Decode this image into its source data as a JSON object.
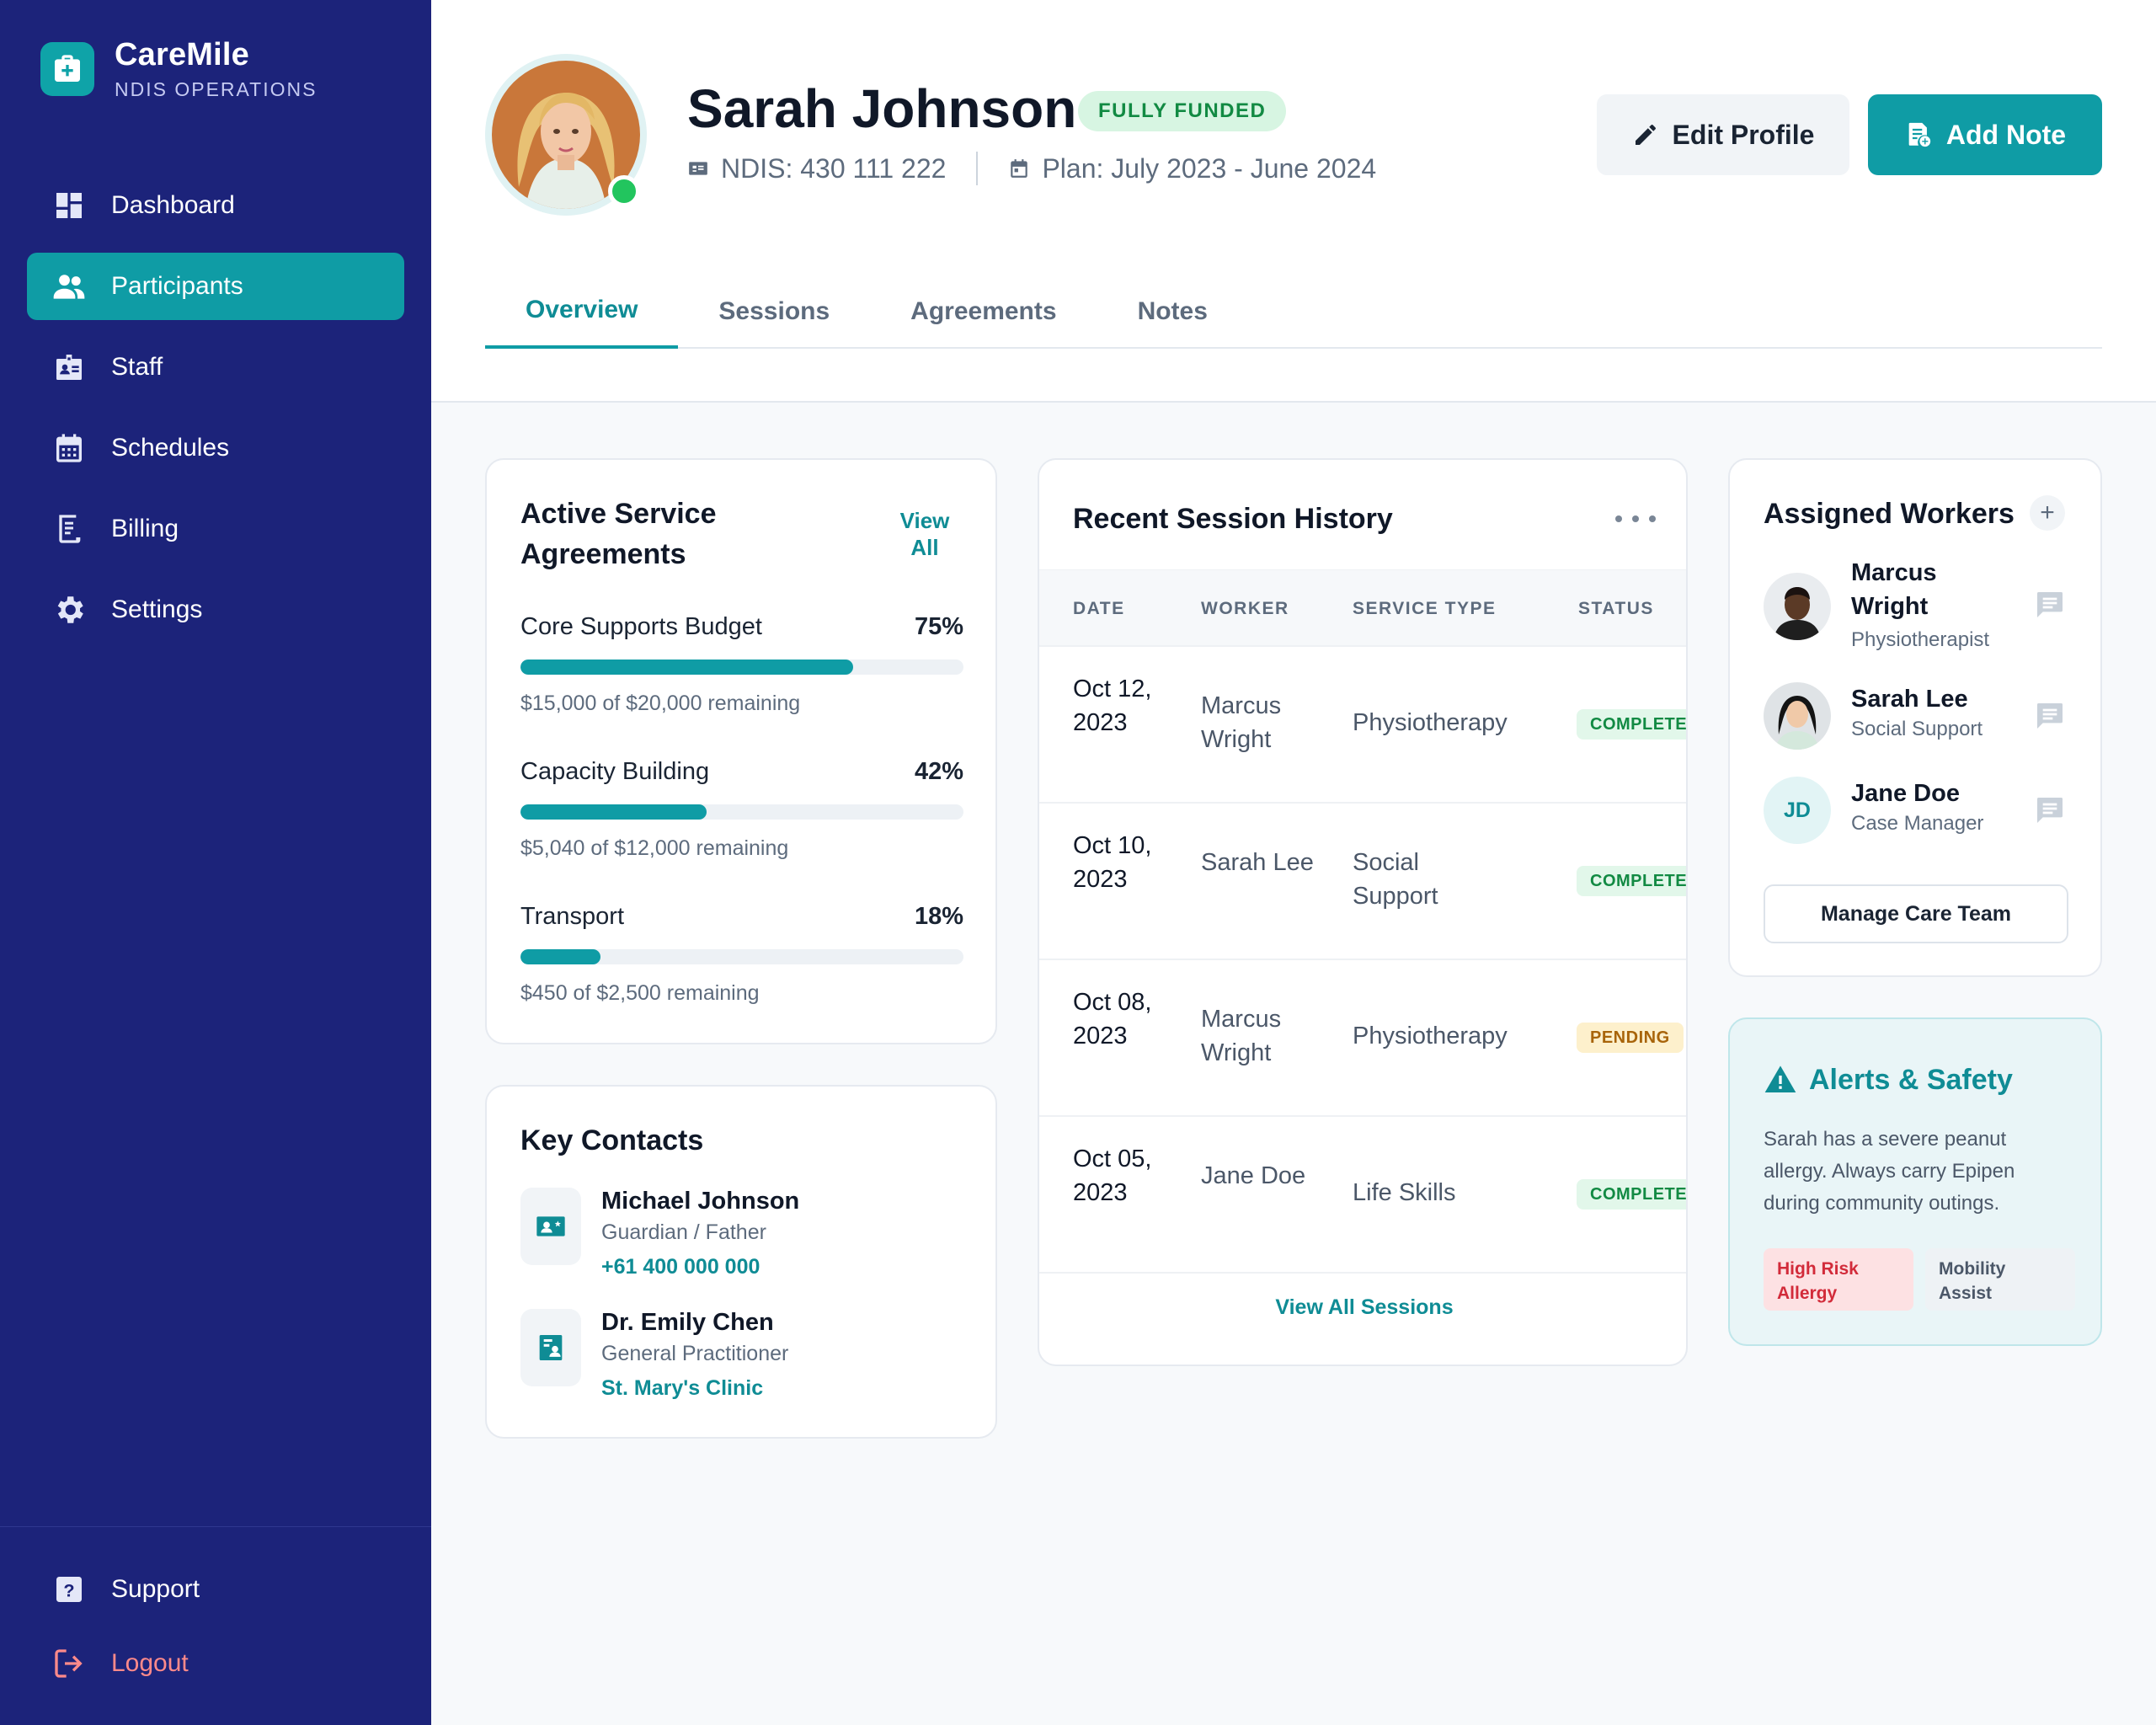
{
  "brand": {
    "name": "CareMile",
    "subtitle": "NDIS OPERATIONS"
  },
  "nav": [
    {
      "label": "Dashboard",
      "icon": "dashboard-icon"
    },
    {
      "label": "Participants",
      "icon": "people-icon",
      "active": true
    },
    {
      "label": "Staff",
      "icon": "id-badge-icon"
    },
    {
      "label": "Schedules",
      "icon": "calendar-icon"
    },
    {
      "label": "Billing",
      "icon": "receipt-icon"
    },
    {
      "label": "Settings",
      "icon": "gear-icon"
    }
  ],
  "sidebar_bottom": {
    "support": "Support",
    "logout": "Logout"
  },
  "profile": {
    "name": "Sarah Johnson",
    "badge": "FULLY FUNDED",
    "ndis": "NDIS: 430 111 222",
    "plan": "Plan: July 2023 - June 2024",
    "online": true
  },
  "actions": {
    "edit": "Edit Profile",
    "add_note": "Add Note"
  },
  "tabs": [
    "Overview",
    "Sessions",
    "Agreements",
    "Notes"
  ],
  "agreements": {
    "title": "Active Service Agreements",
    "view_all": "View All",
    "items": [
      {
        "label": "Core Supports Budget",
        "percent": "75%",
        "fill": 0.75,
        "remaining": "$15,000 of $20,000 remaining"
      },
      {
        "label": "Capacity Building",
        "percent": "42%",
        "fill": 0.42,
        "remaining": "$5,040 of $12,000 remaining"
      },
      {
        "label": "Transport",
        "percent": "18%",
        "fill": 0.18,
        "remaining": "$450 of $2,500 remaining"
      }
    ]
  },
  "contacts": {
    "title": "Key Contacts",
    "items": [
      {
        "name": "Michael Johnson",
        "role": "Guardian / Father",
        "link": "+61 400 000 000"
      },
      {
        "name": "Dr. Emily Chen",
        "role": "General Practitioner",
        "link": "St. Mary's Clinic"
      }
    ]
  },
  "sessions": {
    "title": "Recent Session History",
    "columns": [
      "DATE",
      "WORKER",
      "SERVICE TYPE",
      "STATUS"
    ],
    "rows": [
      {
        "date": "Oct 12, 2023",
        "worker": "Marcus Wright",
        "type": "Physiotherapy",
        "status": "COMPLETED",
        "state": "done"
      },
      {
        "date": "Oct 10, 2023",
        "worker": "Sarah Lee",
        "type": "Social Support",
        "status": "COMPLETED",
        "state": "done"
      },
      {
        "date": "Oct 08, 2023",
        "worker": "Marcus Wright",
        "type": "Physiotherapy",
        "status": "PENDING",
        "state": "pending"
      },
      {
        "date": "Oct 05, 2023",
        "worker": "Jane Doe",
        "type": "Life Skills",
        "status": "COMPLETED",
        "state": "done"
      }
    ],
    "view_all": "View All Sessions"
  },
  "workers": {
    "title": "Assigned Workers",
    "items": [
      {
        "name": "Marcus Wright",
        "role": "Physiotherapist"
      },
      {
        "name": "Sarah Lee",
        "role": "Social Support"
      },
      {
        "name": "Jane Doe",
        "role": "Case Manager",
        "initials": "JD"
      }
    ],
    "manage": "Manage Care Team"
  },
  "alerts": {
    "title": "Alerts & Safety",
    "text": "Sarah has a severe peanut allergy. Always carry Epipen during community outings.",
    "tags": [
      "High Risk Allergy",
      "Mobility Assist"
    ]
  },
  "colors": {
    "sidebar": "#1c237a",
    "accent": "#0f9ca5",
    "success": "#22c55e",
    "danger": "#d22b3a"
  }
}
